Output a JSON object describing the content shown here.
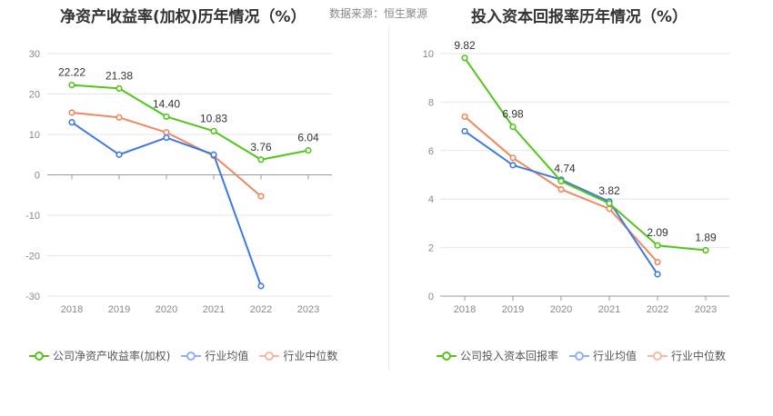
{
  "source_text": "数据来源：恒生聚源",
  "chart_data": [
    {
      "type": "line",
      "title": "净资产收益率(加权)历年情况（%）",
      "categories": [
        "2018",
        "2019",
        "2020",
        "2021",
        "2022",
        "2023"
      ],
      "ylim": [
        -30,
        30
      ],
      "yticks": [
        30,
        20,
        10,
        0,
        -10,
        -20,
        -30
      ],
      "grid": true,
      "legend_position": "bottom",
      "series": [
        {
          "name": "公司净资产收益率(加权)",
          "color": "#52c41a",
          "values": [
            22.22,
            21.38,
            14.4,
            10.83,
            3.76,
            6.04
          ],
          "labels": [
            "22.22",
            "21.38",
            "14.40",
            "10.83",
            "3.76",
            "6.04"
          ]
        },
        {
          "name": "行业均值",
          "color": "#3f7ae0",
          "values": [
            13.0,
            5.0,
            9.2,
            5.0,
            -27.5,
            null
          ]
        },
        {
          "name": "行业中位数",
          "color": "#f0875f",
          "values": [
            15.4,
            14.2,
            10.5,
            4.7,
            -5.3,
            null
          ]
        }
      ]
    },
    {
      "type": "line",
      "title": "投入资本回报率历年情况（%）",
      "categories": [
        "2018",
        "2019",
        "2020",
        "2021",
        "2022",
        "2023"
      ],
      "ylim": [
        0,
        10
      ],
      "yticks": [
        10,
        8,
        6,
        4,
        2,
        0
      ],
      "grid": true,
      "legend_position": "bottom",
      "series": [
        {
          "name": "公司投入资本回报率",
          "color": "#52c41a",
          "values": [
            9.82,
            6.98,
            4.74,
            3.82,
            2.09,
            1.89
          ],
          "labels": [
            "9.82",
            "6.98",
            "4.74",
            "3.82",
            "2.09",
            "1.89"
          ]
        },
        {
          "name": "行业均值",
          "color": "#3f7ae0",
          "values": [
            6.8,
            5.4,
            4.8,
            3.9,
            0.9,
            null
          ]
        },
        {
          "name": "行业中位数",
          "color": "#f0875f",
          "values": [
            7.4,
            5.7,
            4.4,
            3.6,
            1.4,
            null
          ]
        }
      ]
    }
  ]
}
